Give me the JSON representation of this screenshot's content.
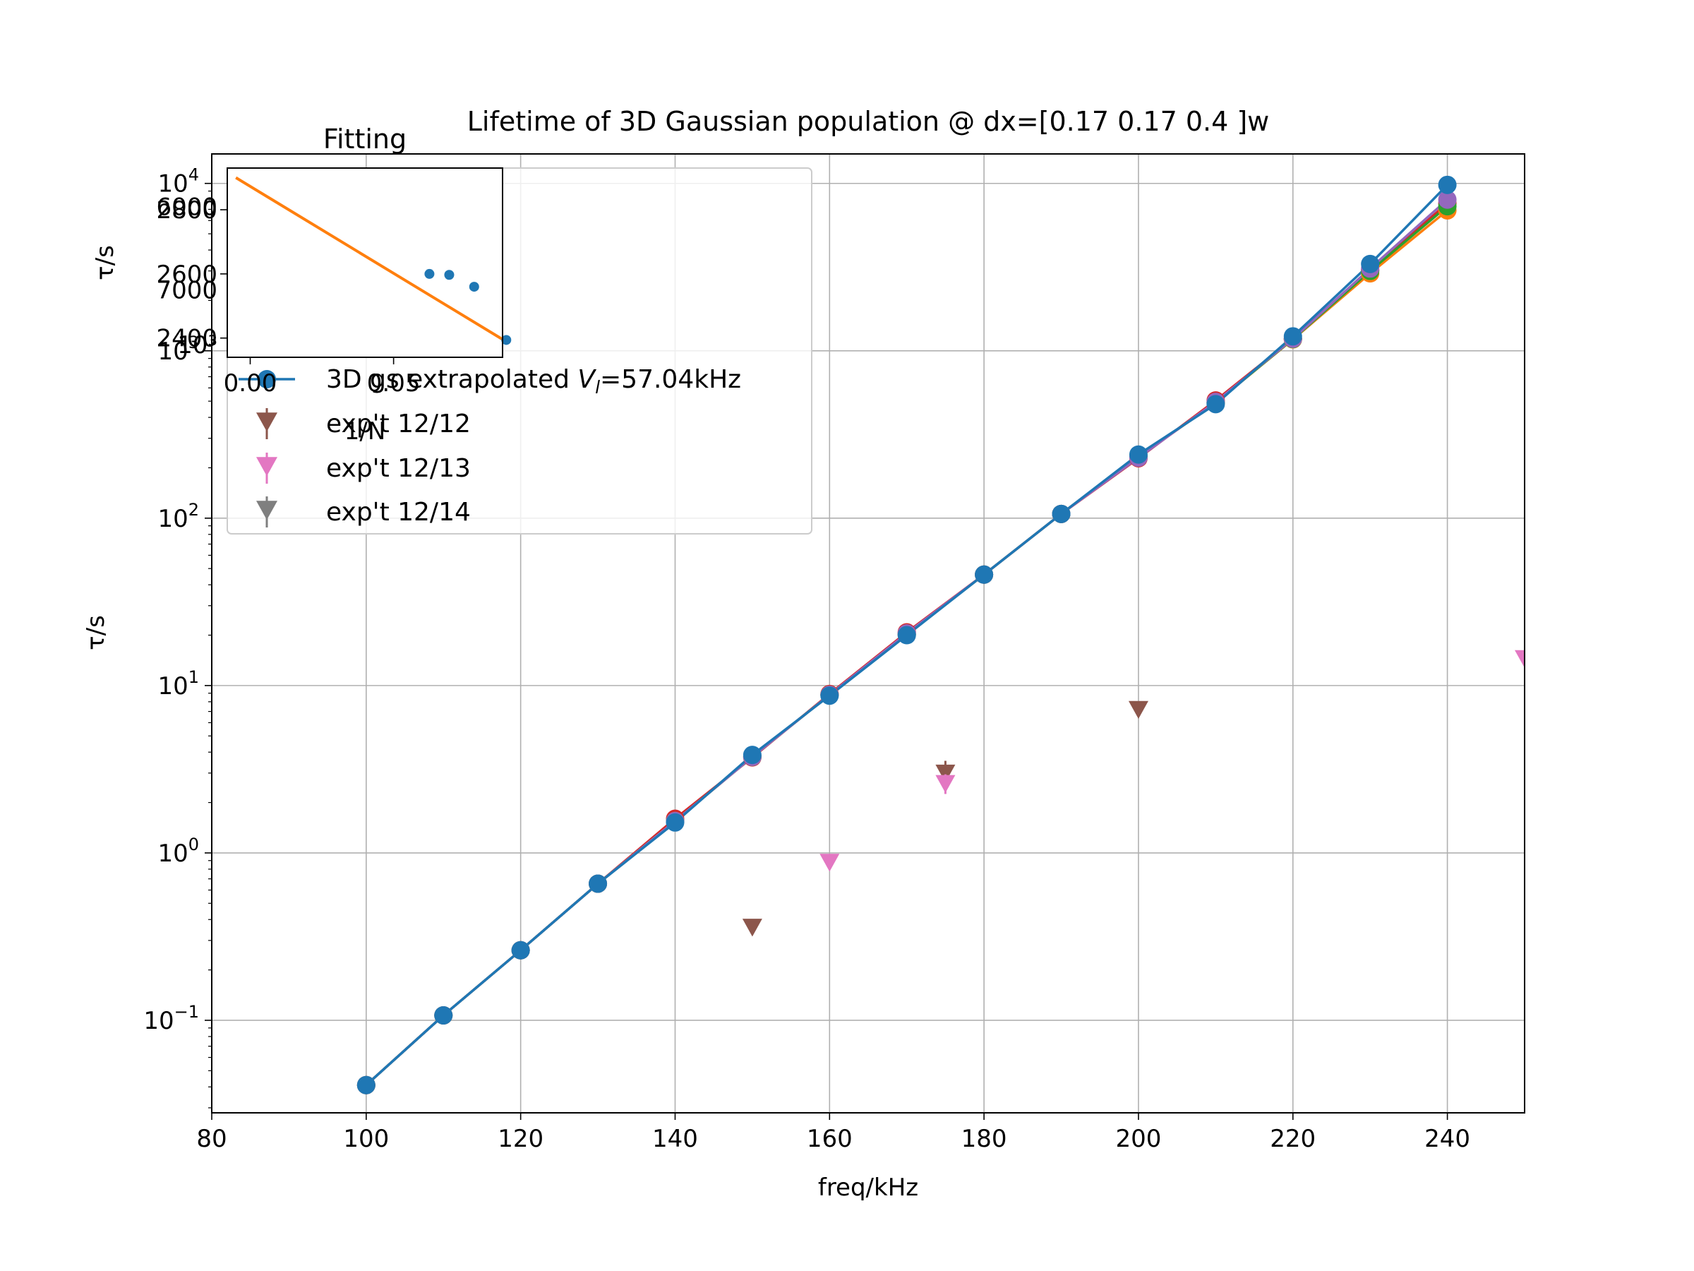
{
  "chart_data": [
    {
      "type": "line",
      "title": "Lifetime of 3D Gaussian population @ dx=[0.17 0.17 0.4 ]w",
      "xlabel": "freq/kHz",
      "ylabel": "τ/s",
      "xlim": [
        80,
        250
      ],
      "ylim": [
        0.028,
        15000
      ],
      "yscale": "log",
      "grid": true,
      "legend_placement": "upper-left",
      "xticks": [
        "80",
        "100",
        "120",
        "140",
        "160",
        "180",
        "200",
        "220",
        "240"
      ],
      "yticks": [
        {
          "value": 0.1,
          "base": "10",
          "exp": "−1"
        },
        {
          "value": 1,
          "base": "10",
          "exp": "0"
        },
        {
          "value": 10,
          "base": "10",
          "exp": "1"
        },
        {
          "value": 100,
          "base": "10",
          "exp": "2"
        },
        {
          "value": 1000,
          "base": "10",
          "exp": "3"
        },
        {
          "value": 10000,
          "base": "10",
          "exp": "4"
        }
      ],
      "x": [
        100,
        110,
        120,
        130,
        140,
        150,
        160,
        170,
        180,
        190,
        200,
        210,
        220,
        230,
        240
      ],
      "series": [
        {
          "name": "V_l=57.04kHz",
          "legend_suffix": "=57.04kHz",
          "color": "#d62728",
          "marker": "circle",
          "values": [
            0.041,
            0.107,
            0.262,
            0.655,
            1.6,
            3.72,
            8.9,
            20.8,
            46,
            106,
            228,
            505,
            1180,
            3030,
            7600
          ]
        },
        {
          "name": "V_l=57.04kHz",
          "legend_suffix": "=57.04kHz",
          "color": "#ff7f0e",
          "marker": "circle",
          "values": [
            0.041,
            0.107,
            0.262,
            0.655,
            1.55,
            3.75,
            8.8,
            20.2,
            46,
            106,
            232,
            490,
            1170,
            2900,
            6900
          ]
        },
        {
          "name": "V_l=57.04kHz",
          "legend_suffix": "=57.04kHz",
          "color": "#2ca02c",
          "marker": "circle",
          "values": [
            0.041,
            0.107,
            0.262,
            0.655,
            1.55,
            3.75,
            8.8,
            20.2,
            46,
            106,
            233,
            490,
            1175,
            3000,
            7300
          ]
        },
        {
          "name": "V_l=57.04kHz",
          "legend_suffix": "=57.04kHz",
          "color": "#9467bd",
          "marker": "circle",
          "values": [
            0.041,
            0.107,
            0.262,
            0.655,
            1.55,
            3.75,
            8.8,
            20.5,
            46,
            106,
            230,
            495,
            1180,
            3100,
            8000
          ]
        },
        {
          "name": "3D gs extrapolated V_l=57.04kHz",
          "legend_prefix": "3D gs extrapolated ",
          "legend_suffix": "=57.04kHz",
          "color": "#1f77b4",
          "marker": "circle",
          "values": [
            0.041,
            0.107,
            0.262,
            0.655,
            1.52,
            3.85,
            8.7,
            20,
            46,
            106,
            240,
            480,
            1220,
            3300,
            9800
          ]
        }
      ],
      "experimental": [
        {
          "name": "exp't 12/12",
          "color": "#8c564b",
          "marker": "triangle-down",
          "points": [
            {
              "x": 150,
              "y": 0.36,
              "err": 0.02
            },
            {
              "x": 175,
              "y": 3.0,
              "err": 0.55
            },
            {
              "x": 200,
              "y": 7.2,
              "err": 0.3
            }
          ]
        },
        {
          "name": "exp't 12/13",
          "color": "#e377c2",
          "marker": "triangle-down",
          "points": [
            {
              "x": 160,
              "y": 0.88,
              "err": 0.03
            },
            {
              "x": 175,
              "y": 2.6,
              "err": 0.35
            },
            {
              "x": 250,
              "y": 14.5,
              "err": 0.5
            }
          ]
        },
        {
          "name": "exp't 12/14",
          "color": "#7f7f7f",
          "marker": "triangle-down",
          "points": []
        }
      ]
    },
    {
      "type": "scatter",
      "title": "Fitting",
      "xlabel": "1/N",
      "ylabel": "τ/s",
      "xlim": [
        -0.008,
        0.088
      ],
      "ylim": [
        2340,
        2930
      ],
      "xticks": [
        "0.00",
        "0.05"
      ],
      "yticks": [
        "2400",
        "2600",
        "2800"
      ],
      "overlapping_ticks": [
        "6000",
        "7000",
        "10³"
      ],
      "points": [
        {
          "x": 0.0625,
          "y": 2600
        },
        {
          "x": 0.0694,
          "y": 2597
        },
        {
          "x": 0.0781,
          "y": 2560
        },
        {
          "x": 0.0893,
          "y": 2394
        }
      ],
      "fit_line": {
        "x": [
          -0.005,
          0.09
        ],
        "y": [
          2900,
          2385
        ],
        "color": "#ff7f0e"
      },
      "point_color": "#1f77b4"
    }
  ]
}
